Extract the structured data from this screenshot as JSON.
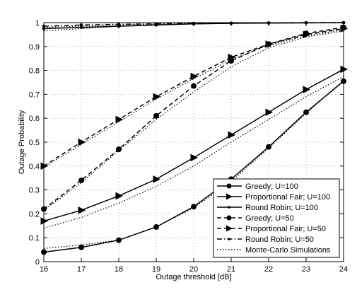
{
  "chart_data": {
    "type": "line",
    "xlabel": "Outage threshold [dB]",
    "ylabel": "Outage Probability",
    "x": [
      16,
      17,
      18,
      19,
      20,
      21,
      22,
      23,
      24
    ],
    "xlim": [
      16,
      24
    ],
    "xticks": [
      16,
      17,
      18,
      19,
      20,
      21,
      22,
      23,
      24
    ],
    "ylim": [
      0,
      1
    ],
    "yticks": [
      0,
      0.1,
      0.2,
      0.3,
      0.4,
      0.5,
      0.6,
      0.7,
      0.8,
      0.9,
      1
    ],
    "grid": true,
    "legend": "lower right",
    "series": [
      {
        "name": "Greedy; U=100",
        "color": "#000000",
        "dash": "solid",
        "marker": "circle",
        "values": [
          0.04,
          0.06,
          0.09,
          0.145,
          0.23,
          0.345,
          0.48,
          0.625,
          0.755
        ]
      },
      {
        "name": "Proportional Fair; U=100",
        "color": "#000000",
        "dash": "solid",
        "marker": "triangle",
        "values": [
          0.17,
          0.215,
          0.275,
          0.345,
          0.435,
          0.53,
          0.625,
          0.72,
          0.805
        ]
      },
      {
        "name": "Round Robin; U=100",
        "color": "#000000",
        "dash": "solid",
        "marker": "point",
        "values": [
          0.975,
          0.98,
          0.985,
          0.99,
          0.995,
          0.997,
          0.998,
          0.999,
          1.0
        ]
      },
      {
        "name": "Greedy; U=50",
        "color": "#000000",
        "dash": "dashed",
        "marker": "circle",
        "values": [
          0.22,
          0.34,
          0.47,
          0.61,
          0.735,
          0.84,
          0.91,
          0.955,
          0.98
        ]
      },
      {
        "name": "Proportional Fair; U=50",
        "color": "#000000",
        "dash": "dashed",
        "marker": "triangle",
        "values": [
          0.4,
          0.5,
          0.595,
          0.69,
          0.775,
          0.855,
          0.91,
          0.95,
          0.975
        ]
      },
      {
        "name": "Round Robin; U=50",
        "color": "#000000",
        "dash": "dashdot",
        "marker": "point",
        "values": [
          0.985,
          0.99,
          0.993,
          0.995,
          0.997,
          0.998,
          0.999,
          1.0,
          1.0
        ]
      },
      {
        "name": "Monte-Carlo Simulations",
        "color": "#000000",
        "dash": "dotted",
        "marker": "none",
        "values": [
          [
            0.055,
            0.07,
            0.09,
            0.145,
            0.225,
            0.335,
            0.475,
            0.62,
            0.76
          ],
          [
            0.14,
            0.185,
            0.245,
            0.315,
            0.4,
            0.5,
            0.595,
            0.69,
            0.775
          ],
          [
            0.965,
            0.975,
            0.985,
            0.99,
            0.995,
            0.997,
            0.998,
            0.999,
            1.0
          ],
          [
            0.215,
            0.33,
            0.465,
            0.595,
            0.71,
            0.815,
            0.895,
            0.94,
            0.965
          ],
          [
            0.395,
            0.49,
            0.585,
            0.68,
            0.765,
            0.845,
            0.905,
            0.945,
            0.97
          ],
          [
            0.98,
            0.985,
            0.99,
            0.993,
            0.995,
            0.997,
            0.998,
            0.999,
            1.0
          ]
        ]
      }
    ]
  }
}
